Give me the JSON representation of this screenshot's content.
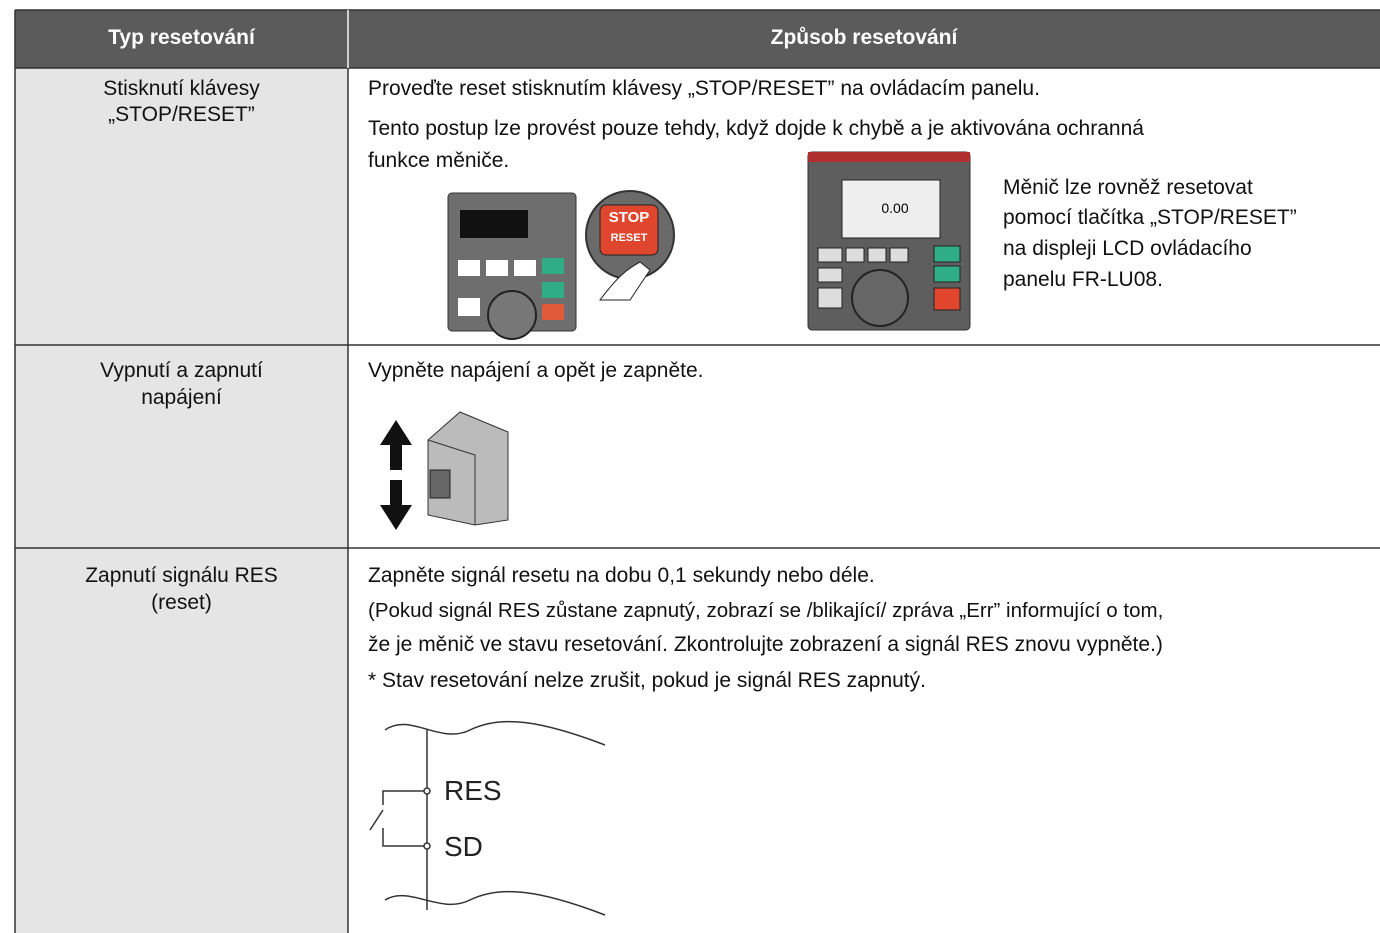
{
  "table": {
    "header": [
      "Typ resetování",
      "Způsob resetování"
    ],
    "rows": [
      {
        "type": [
          "Stisknutí klávesy",
          "„STOP/RESET”"
        ],
        "lines": [
          "Proveďte reset stisknutím klávesy „STOP/RESET” na ovládacím panelu.",
          "Tento postup lze provést pouze tehdy, když dojde k chybě a je aktivována ochranná",
          "funkce měniče."
        ],
        "button": [
          "STOP",
          "RESET"
        ],
        "lcd": "0.00",
        "note": [
          "Měnič lze rovněž resetovat",
          "pomocí tlačítka „STOP/RESET”",
          "na displeji LCD ovládacího",
          "panelu FR-LU08."
        ]
      },
      {
        "type": [
          "Vypnutí a zapnutí",
          "napájení"
        ],
        "lines": [
          "Vypněte napájení a opět je zapněte."
        ]
      },
      {
        "type": [
          "Zapnutí signálu RES",
          "(reset)"
        ],
        "lines": [
          "Zapněte signál resetu na dobu 0,1 sekundy nebo déle.",
          "(Pokud signál RES zůstane zapnutý, zobrazí se /blikající/ zpráva „Err” informující o tom,",
          "že je měnič ve stavu resetování. Zkontrolujte zobrazení a signál RES znovu vypněte.)",
          "* Stav resetování nelze zrušit, pokud je signál RES zapnutý."
        ],
        "diagram": [
          "RES",
          "SD"
        ]
      }
    ]
  }
}
